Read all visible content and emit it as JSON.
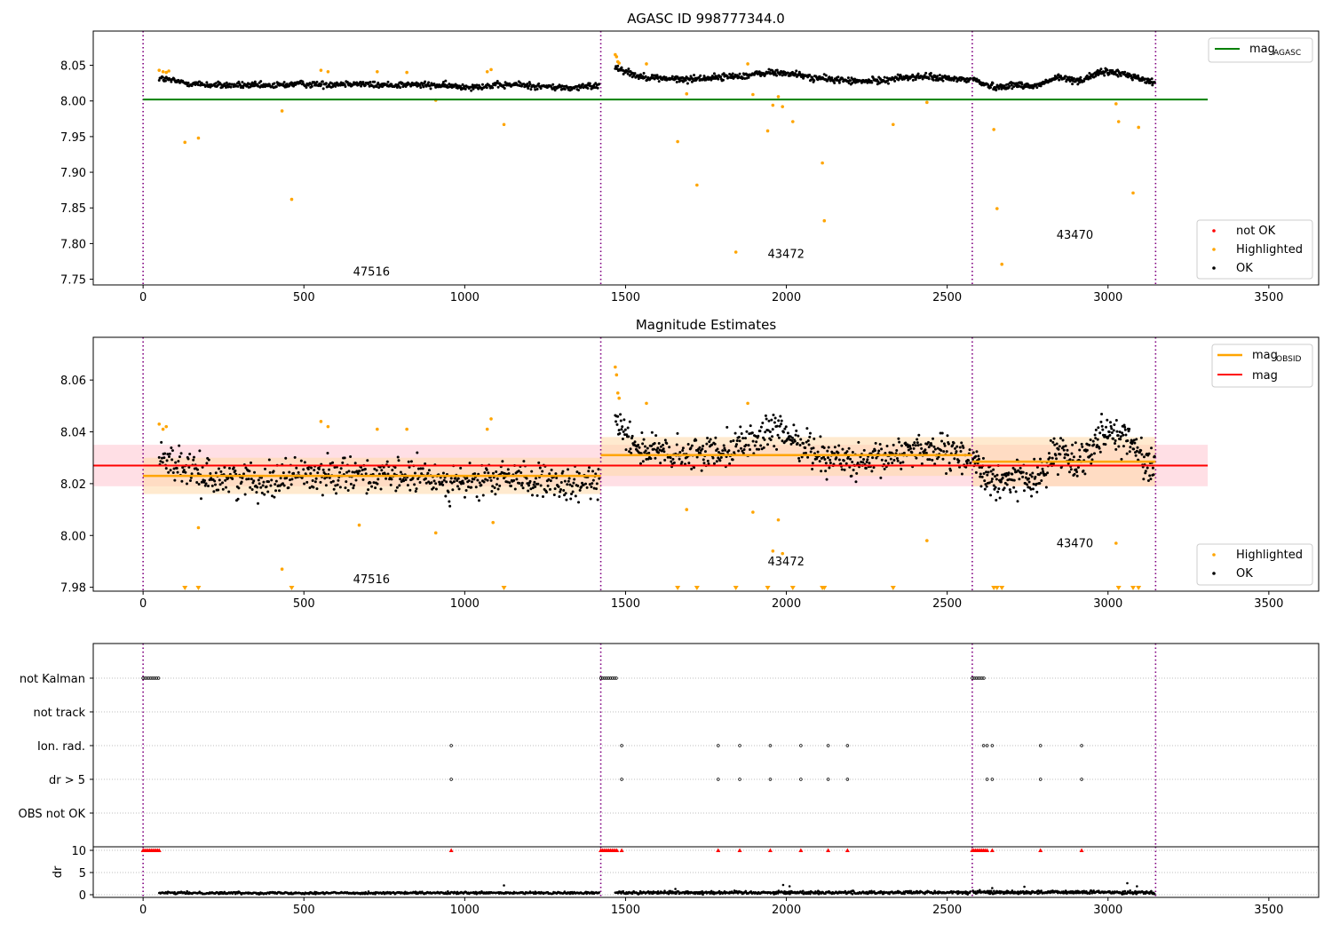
{
  "figure": {
    "colors": {
      "ok": "#000000",
      "highlighted": "#ffa500",
      "not_ok": "#ff0000",
      "agasc_line": "#008000",
      "mag_line": "#ff0000",
      "mag_obsid_line": "#ffa500",
      "mag_band": "#ffc0cb",
      "obsid_band": "#ffd8a8",
      "divider": "#800080"
    },
    "obsid_boundaries": [
      0,
      1423,
      2578,
      3148
    ],
    "obsid_labels": [
      {
        "x": 710,
        "text": "47516"
      },
      {
        "x": 1999,
        "text": "43472"
      },
      {
        "x": 2897,
        "text": "43470"
      }
    ]
  },
  "chart_data": [
    {
      "type": "scatter",
      "title": "AGASC ID 998777344.0",
      "xlim": [
        -155,
        3655
      ],
      "ylim": [
        7.742,
        8.098
      ],
      "xticks": [
        0,
        500,
        1000,
        1500,
        2000,
        2500,
        3000,
        3500
      ],
      "yticks": [
        7.75,
        7.8,
        7.85,
        7.9,
        7.95,
        8.0,
        8.05
      ],
      "ytick_labels": [
        "7.75",
        "7.80",
        "7.85",
        "7.90",
        "7.95",
        "8.00",
        "8.05"
      ],
      "obsid_label_y": [
        7.755,
        7.78,
        7.807
      ],
      "reference_line": {
        "name": "mag",
        "subscript": "AGASC",
        "y": 8.002,
        "x_range": [
          0,
          3310
        ]
      },
      "legend_top": [
        "mag_AGASC"
      ],
      "legend_bottom": [
        "not OK",
        "Highlighted",
        "OK"
      ],
      "ok_series": [
        {
          "x_range": [
            50,
            1418
          ],
          "base": [
            8.032,
            8.025,
            8.022,
            8.022,
            8.021,
            8.024,
            8.023,
            8.025,
            8.022,
            8.023,
            8.022,
            8.02,
            8.021,
            8.023,
            8.02,
            8.018,
            8.022
          ],
          "jitter": 0.0045,
          "n": 620
        },
        {
          "x_range": [
            1468,
            2572
          ],
          "base": [
            8.048,
            8.035,
            8.032,
            8.03,
            8.032,
            8.034,
            8.036,
            8.04,
            8.038,
            8.032,
            8.03,
            8.027,
            8.029,
            8.033,
            8.034,
            8.031,
            8.03
          ],
          "jitter": 0.0045,
          "n": 560
        },
        {
          "x_range": [
            2580,
            3145
          ],
          "base": [
            8.031,
            8.023,
            8.019,
            8.022,
            8.023,
            8.02,
            8.026,
            8.033,
            8.03,
            8.029,
            8.037,
            8.041,
            8.039,
            8.036,
            8.03,
            8.025
          ],
          "jitter": 0.0045,
          "n": 330
        }
      ],
      "highlighted_points": [
        {
          "x": 50,
          "y": 8.043
        },
        {
          "x": 62,
          "y": 8.041
        },
        {
          "x": 72,
          "y": 8.04
        },
        {
          "x": 80,
          "y": 8.042
        },
        {
          "x": 130,
          "y": 7.942
        },
        {
          "x": 172,
          "y": 7.948
        },
        {
          "x": 432,
          "y": 7.986
        },
        {
          "x": 462,
          "y": 7.862
        },
        {
          "x": 553,
          "y": 8.043
        },
        {
          "x": 575,
          "y": 8.041
        },
        {
          "x": 728,
          "y": 8.041
        },
        {
          "x": 820,
          "y": 8.04
        },
        {
          "x": 910,
          "y": 8.001
        },
        {
          "x": 1070,
          "y": 8.041
        },
        {
          "x": 1082,
          "y": 8.044
        },
        {
          "x": 1122,
          "y": 7.967
        },
        {
          "x": 1468,
          "y": 8.065
        },
        {
          "x": 1472,
          "y": 8.062
        },
        {
          "x": 1476,
          "y": 8.055
        },
        {
          "x": 1480,
          "y": 8.053
        },
        {
          "x": 1565,
          "y": 8.052
        },
        {
          "x": 1662,
          "y": 7.943
        },
        {
          "x": 1690,
          "y": 8.01
        },
        {
          "x": 1722,
          "y": 7.882
        },
        {
          "x": 1843,
          "y": 7.788
        },
        {
          "x": 1880,
          "y": 8.052
        },
        {
          "x": 1896,
          "y": 8.009
        },
        {
          "x": 1942,
          "y": 7.958
        },
        {
          "x": 1958,
          "y": 7.994
        },
        {
          "x": 1975,
          "y": 8.006
        },
        {
          "x": 1988,
          "y": 7.992
        },
        {
          "x": 2020,
          "y": 7.971
        },
        {
          "x": 2112,
          "y": 7.913
        },
        {
          "x": 2118,
          "y": 7.832
        },
        {
          "x": 2332,
          "y": 7.967
        },
        {
          "x": 2437,
          "y": 7.998
        },
        {
          "x": 2645,
          "y": 7.96
        },
        {
          "x": 2655,
          "y": 7.849
        },
        {
          "x": 2670,
          "y": 7.771
        },
        {
          "x": 3025,
          "y": 7.996
        },
        {
          "x": 3033,
          "y": 7.971
        },
        {
          "x": 3078,
          "y": 7.871
        },
        {
          "x": 3095,
          "y": 7.963
        }
      ]
    },
    {
      "type": "scatter",
      "title": "Magnitude Estimates",
      "xlim": [
        -155,
        3655
      ],
      "ylim": [
        7.9785,
        8.0765
      ],
      "xticks": [
        0,
        500,
        1000,
        1500,
        2000,
        2500,
        3000,
        3500
      ],
      "yticks": [
        7.98,
        8.0,
        8.02,
        8.04,
        8.06
      ],
      "ytick_labels": [
        "7.98",
        "8.00",
        "8.02",
        "8.04",
        "8.06"
      ],
      "obsid_label_y": [
        7.9815,
        7.9885,
        7.9955
      ],
      "mag": {
        "name": "mag",
        "y": 8.027,
        "band": [
          8.019,
          8.035
        ],
        "x_range": [
          -155,
          3310
        ]
      },
      "mag_obsid": {
        "name": "mag",
        "subscript": "OBSID",
        "segments": [
          {
            "x_range": [
              0,
              1423
            ],
            "y": 8.023,
            "band": [
              8.016,
              8.03
            ]
          },
          {
            "x_range": [
              1423,
              2578
            ],
            "y": 8.031,
            "band": [
              8.023,
              8.038
            ]
          },
          {
            "x_range": [
              2578,
              3148
            ],
            "y": 8.0285,
            "band": [
              8.019,
              8.038
            ]
          }
        ]
      },
      "legend_top": [
        "mag_OBSID",
        "mag"
      ],
      "legend_bottom": [
        "Highlighted",
        "OK"
      ],
      "ok_series": [
        {
          "x_range": [
            50,
            1418
          ],
          "base": [
            8.032,
            8.025,
            8.022,
            8.022,
            8.021,
            8.024,
            8.023,
            8.025,
            8.022,
            8.023,
            8.022,
            8.02,
            8.021,
            8.023,
            8.02,
            8.018,
            8.022
          ],
          "jitter": 0.0065,
          "n": 620
        },
        {
          "x_range": [
            1468,
            2572
          ],
          "base": [
            8.046,
            8.034,
            8.032,
            8.03,
            8.032,
            8.034,
            8.036,
            8.04,
            8.038,
            8.032,
            8.03,
            8.027,
            8.029,
            8.033,
            8.034,
            8.031,
            8.03
          ],
          "jitter": 0.0065,
          "n": 560
        },
        {
          "x_range": [
            2580,
            3145
          ],
          "base": [
            8.031,
            8.023,
            8.019,
            8.022,
            8.023,
            8.02,
            8.026,
            8.033,
            8.03,
            8.029,
            8.037,
            8.041,
            8.039,
            8.036,
            8.03,
            8.025
          ],
          "jitter": 0.0065,
          "n": 330
        }
      ],
      "highlighted_points": [
        {
          "x": 50,
          "y": 8.043
        },
        {
          "x": 62,
          "y": 8.041
        },
        {
          "x": 72,
          "y": 8.042
        },
        {
          "x": 172,
          "y": 8.003
        },
        {
          "x": 432,
          "y": 7.987
        },
        {
          "x": 553,
          "y": 8.044
        },
        {
          "x": 575,
          "y": 8.042
        },
        {
          "x": 672,
          "y": 8.004
        },
        {
          "x": 728,
          "y": 8.041
        },
        {
          "x": 820,
          "y": 8.041
        },
        {
          "x": 910,
          "y": 8.001
        },
        {
          "x": 1070,
          "y": 8.041
        },
        {
          "x": 1082,
          "y": 8.045
        },
        {
          "x": 1088,
          "y": 8.005
        },
        {
          "x": 1468,
          "y": 8.065
        },
        {
          "x": 1472,
          "y": 8.062
        },
        {
          "x": 1476,
          "y": 8.055
        },
        {
          "x": 1480,
          "y": 8.053
        },
        {
          "x": 1565,
          "y": 8.051
        },
        {
          "x": 1690,
          "y": 8.01
        },
        {
          "x": 1880,
          "y": 8.051
        },
        {
          "x": 1896,
          "y": 8.009
        },
        {
          "x": 1958,
          "y": 7.994
        },
        {
          "x": 1975,
          "y": 8.006
        },
        {
          "x": 1988,
          "y": 7.993
        },
        {
          "x": 2437,
          "y": 7.998
        },
        {
          "x": 3025,
          "y": 7.997
        }
      ],
      "clipped_low": [
        130,
        172,
        462,
        1122,
        1662,
        1722,
        1843,
        1942,
        2020,
        2112,
        2118,
        2332,
        2645,
        2655,
        2670,
        3033,
        3078,
        3095
      ]
    },
    {
      "type": "scatter",
      "title": "",
      "xlim": [
        -155,
        3655
      ],
      "xticks": [
        0,
        500,
        1000,
        1500,
        2000,
        2500,
        3000,
        3500
      ],
      "categories": [
        "not Kalman",
        "not track",
        "Ion. rad.",
        "dr > 5",
        "OBS not OK"
      ],
      "flag_runs": [
        {
          "category": "not Kalman",
          "x_ranges": [
            [
              0,
              50
            ],
            [
              1423,
              1475
            ],
            [
              2578,
              2618
            ]
          ]
        },
        {
          "category": "Ion. rad.",
          "x_points": [
            958,
            1488,
            1788,
            1855,
            1950,
            2045,
            2130,
            2190,
            2613,
            2624,
            2640,
            2790,
            2918
          ]
        },
        {
          "category": "dr > 5",
          "x_points": [
            958,
            1488,
            1788,
            1855,
            1950,
            2045,
            2130,
            2190,
            2624,
            2640,
            2790,
            2918
          ]
        }
      ]
    },
    {
      "type": "scatter",
      "title": "",
      "xlim": [
        -155,
        3655
      ],
      "ylim": [
        -0.6,
        10.8
      ],
      "ylabel": "dr",
      "xticks": [
        0,
        500,
        1000,
        1500,
        2000,
        2500,
        3000,
        3500
      ],
      "yticks": [
        0,
        5,
        10
      ],
      "dr_series": [
        {
          "x_range": [
            50,
            1418
          ],
          "base": 0.4,
          "jitter": 0.25,
          "n": 600
        },
        {
          "x_range": [
            1468,
            2572
          ],
          "base": 0.5,
          "jitter": 0.35,
          "n": 540
        },
        {
          "x_range": [
            2580,
            3145
          ],
          "base": 0.55,
          "jitter": 0.35,
          "n": 320
        }
      ],
      "dr_outliers": [
        {
          "x": 1122,
          "y": 2.1
        },
        {
          "x": 1655,
          "y": 1.3
        },
        {
          "x": 1990,
          "y": 2.2
        },
        {
          "x": 2010,
          "y": 1.9
        },
        {
          "x": 2640,
          "y": 1.5
        },
        {
          "x": 2740,
          "y": 1.8
        },
        {
          "x": 3060,
          "y": 2.6
        },
        {
          "x": 3090,
          "y": 1.9
        }
      ],
      "dr_clipped_high": {
        "y": 10,
        "x_ranges": [
          [
            0,
            50
          ],
          [
            1423,
            1475
          ],
          [
            2578,
            2618
          ]
        ],
        "x_points": [
          958,
          1488,
          1788,
          1855,
          1950,
          2045,
          2130,
          2190,
          2624,
          2640,
          2790,
          2918
        ]
      }
    }
  ]
}
